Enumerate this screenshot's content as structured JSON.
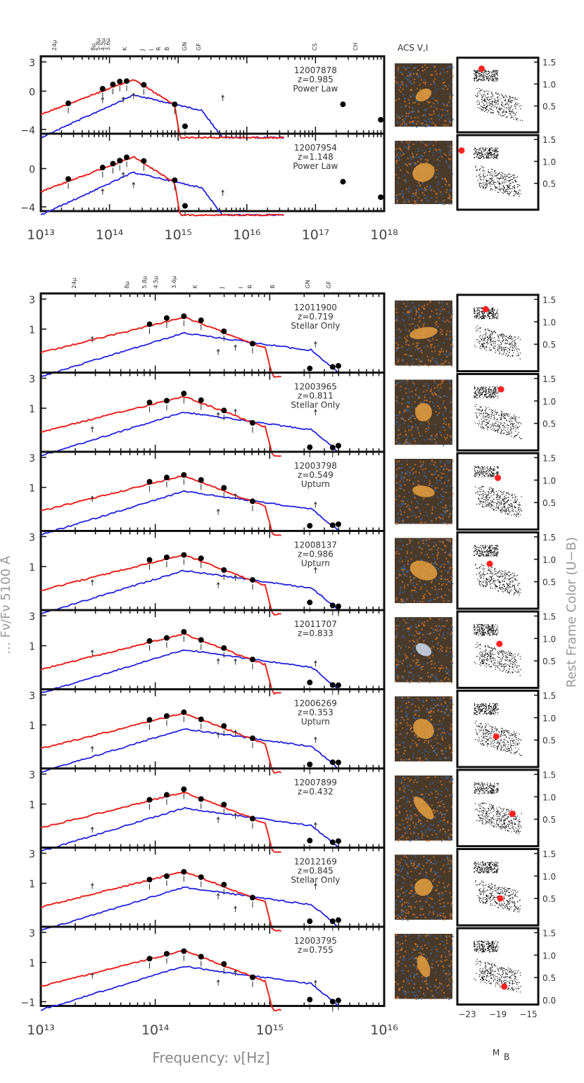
{
  "colors": {
    "red_model": "#e8241f",
    "blue_model": "#2222dd",
    "point": "#000000",
    "cmd_highlight": "#ff2020",
    "stamp_bg": "#4a3a2a"
  },
  "labels": {
    "acs_label": "ACS V,I",
    "x_axis_title": "Frequency: ν[Hz]",
    "rest_frame_label": "Rest Frame Color (U−B)",
    "mb_label": "M",
    "mb_sub": "B",
    "left_ylabel_fragment": "… Fν/Fν 5100 Å"
  },
  "chart_data": [
    {
      "type": "scatter",
      "group": "top",
      "x_scale": "log",
      "xlim": [
        "1e13",
        "1e18"
      ],
      "x_ticks": [
        "10¹³",
        "10¹⁴",
        "10¹⁵",
        "10¹⁶",
        "10¹⁷",
        "10¹⁸"
      ],
      "band_labels": [
        "24µ",
        "8µ",
        "5.8µ",
        "4.5µ",
        "3.6µ",
        "K",
        "J",
        "I",
        "R",
        "B",
        "GN",
        "GF",
        "CS",
        "CH"
      ],
      "panels": [
        {
          "id": "12007878",
          "z": "z=0.985",
          "type": "Power Law",
          "y_ticks": [
            "3",
            "0",
            "−4"
          ]
        },
        {
          "id": "12007954",
          "z": "z=1.148",
          "type": "Power Law",
          "y_ticks": [
            "",
            "0",
            "−4"
          ]
        }
      ]
    },
    {
      "type": "scatter",
      "group": "bottom",
      "x_scale": "log",
      "xlim": [
        "1e13",
        "1e16"
      ],
      "x_ticks": [
        "10¹³",
        "10¹⁴",
        "10¹⁵",
        "10¹⁶"
      ],
      "band_labels": [
        "24µ",
        "8µ",
        "5.8µ",
        "4.5µ",
        "3.6µ",
        "K",
        "J",
        "I",
        "R",
        "B",
        "GN",
        "GF"
      ],
      "panels": [
        {
          "id": "12011900",
          "z": "z=0.719",
          "type": "Stellar Only",
          "y_ticks": [
            "3",
            "1",
            ""
          ]
        },
        {
          "id": "12003965",
          "z": "z=0.811",
          "type": "Stellar Only",
          "y_ticks": [
            "3",
            "1",
            ""
          ]
        },
        {
          "id": "12003798",
          "z": "z=0.549",
          "type": "Upturn",
          "y_ticks": [
            "3",
            "1",
            ""
          ]
        },
        {
          "id": "12008137",
          "z": "z=0.986",
          "type": "Upturn",
          "y_ticks": [
            "3",
            "1",
            ""
          ]
        },
        {
          "id": "12011707",
          "z": "z=0.833",
          "type": "",
          "y_ticks": [
            "3",
            "1",
            ""
          ]
        },
        {
          "id": "12006269",
          "z": "z=0.353",
          "type": "Upturn",
          "y_ticks": [
            "3",
            "1",
            ""
          ]
        },
        {
          "id": "12007899",
          "z": "z=0.432",
          "type": "",
          "y_ticks": [
            "3",
            "1",
            ""
          ]
        },
        {
          "id": "12012169",
          "z": "z=0.845",
          "type": "Stellar Only",
          "y_ticks": [
            "3",
            "1",
            ""
          ]
        },
        {
          "id": "12003795",
          "z": "z=0.755",
          "type": "",
          "y_ticks": [
            "3",
            "1",
            "−1"
          ]
        }
      ]
    },
    {
      "type": "scatter",
      "group": "cmd",
      "x_label": "M_B",
      "y_label": "Rest Frame Color (U−B)",
      "x_ticks": [
        "−23",
        "−19",
        "−15"
      ],
      "y_ticks": [
        "1.5",
        "1.0",
        "0.5",
        "0.0"
      ],
      "highlight_points": [
        {
          "id": "12007878",
          "MB": -21.0,
          "UB": 1.35
        },
        {
          "id": "12007954",
          "MB": -23.5,
          "UB": 1.25
        },
        {
          "id": "12011900",
          "MB": -20.5,
          "UB": 1.28
        },
        {
          "id": "12003965",
          "MB": -18.6,
          "UB": 1.26
        },
        {
          "id": "12003798",
          "MB": -19.0,
          "UB": 1.05
        },
        {
          "id": "12008137",
          "MB": -20.0,
          "UB": 0.9
        },
        {
          "id": "12011707",
          "MB": -18.8,
          "UB": 0.88
        },
        {
          "id": "12006269",
          "MB": -19.2,
          "UB": 0.58
        },
        {
          "id": "12007899",
          "MB": -17.2,
          "UB": 0.62
        },
        {
          "id": "12012169",
          "MB": -18.7,
          "UB": 0.5
        },
        {
          "id": "12003795",
          "MB": -18.2,
          "UB": 0.3
        }
      ]
    }
  ]
}
